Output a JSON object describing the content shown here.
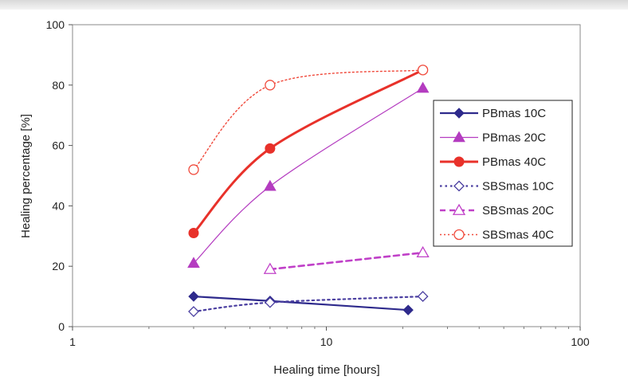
{
  "chart_data": {
    "type": "line",
    "title": "",
    "xlabel": "Healing time [hours]",
    "ylabel": "Healing percentage [%]",
    "xscale": "log",
    "xlim": [
      1,
      100
    ],
    "ylim": [
      0,
      100
    ],
    "x_ticks": [
      "1",
      "10",
      "100"
    ],
    "y_ticks": [
      "0",
      "20",
      "40",
      "60",
      "80",
      "100"
    ],
    "grid": false,
    "legend_position": "right",
    "series": [
      {
        "name": "PBmas 10C",
        "color": "#2e2a8c",
        "marker": "diamond-filled",
        "line": "solid",
        "x": [
          3,
          6,
          21
        ],
        "y": [
          10,
          8.5,
          5.5
        ]
      },
      {
        "name": "PBmas 20C",
        "color": "#b43cc0",
        "marker": "triangle-filled",
        "line": "solid-thin",
        "x": [
          3,
          6,
          24
        ],
        "y": [
          21,
          46.5,
          79
        ]
      },
      {
        "name": "PBmas 40C",
        "color": "#e8312a",
        "marker": "circle-filled",
        "line": "solid-thick",
        "x": [
          3,
          6,
          24
        ],
        "y": [
          31,
          59,
          85
        ]
      },
      {
        "name": "SBSmas 10C",
        "color": "#4a3ea0",
        "marker": "diamond-open",
        "line": "dotted",
        "x": [
          3,
          6,
          24
        ],
        "y": [
          5,
          8,
          10
        ]
      },
      {
        "name": "SBSmas 20C",
        "color": "#c040c8",
        "marker": "triangle-open",
        "line": "dashed",
        "x": [
          6,
          24
        ],
        "y": [
          19,
          24.5
        ]
      },
      {
        "name": "SBSmas 40C",
        "color": "#f04a3c",
        "marker": "circle-open",
        "line": "dotted-thin",
        "x": [
          3,
          6,
          24
        ],
        "y": [
          52,
          80,
          85
        ]
      }
    ]
  }
}
